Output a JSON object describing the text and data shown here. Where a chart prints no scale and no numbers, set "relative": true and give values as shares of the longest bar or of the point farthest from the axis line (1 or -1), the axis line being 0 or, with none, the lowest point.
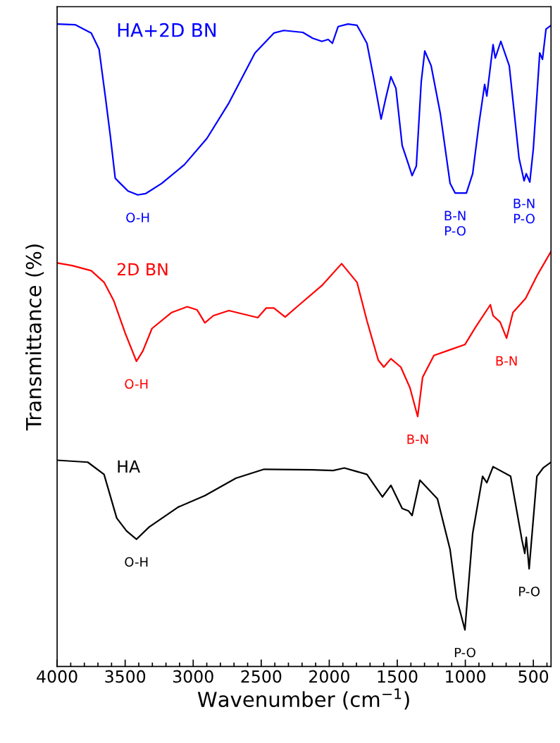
{
  "chart_data": {
    "type": "line",
    "relative": true,
    "xlabel": "Wavenumber (cm$^{−1}$)",
    "ylabel": "Transmittance (%)",
    "xlim": [
      4000,
      370
    ],
    "xticks": [
      4000,
      3500,
      3000,
      2500,
      2000,
      1500,
      1000,
      500,
      {
        "value": 3900,
        "label": null
      },
      {
        "value": 3800,
        "label": null
      },
      {
        "value": 3700,
        "label": null
      },
      {
        "value": 3600,
        "label": null
      },
      {
        "value": 3400,
        "label": null
      },
      {
        "value": 3300,
        "label": null
      },
      {
        "value": 3200,
        "label": null
      },
      {
        "value": 3100,
        "label": null
      },
      {
        "value": 2900,
        "label": null
      },
      {
        "value": 2800,
        "label": null
      },
      {
        "value": 2700,
        "label": null
      },
      {
        "value": 2600,
        "label": null
      },
      {
        "value": 2400,
        "label": null
      },
      {
        "value": 2300,
        "label": null
      },
      {
        "value": 2200,
        "label": null
      },
      {
        "value": 2100,
        "label": null
      },
      {
        "value": 1900,
        "label": null
      },
      {
        "value": 1800,
        "label": null
      },
      {
        "value": 1700,
        "label": null
      },
      {
        "value": 1600,
        "label": null
      },
      {
        "value": 1400,
        "label": null
      },
      {
        "value": 1300,
        "label": null
      },
      {
        "value": 1200,
        "label": null
      },
      {
        "value": 1100,
        "label": null
      },
      {
        "value": 900,
        "label": null
      },
      {
        "value": 800,
        "label": null
      },
      {
        "value": 700,
        "label": null
      },
      {
        "value": 600,
        "label": null
      },
      {
        "value": 400,
        "label": null
      }
    ],
    "grid": false,
    "legend": false,
    "series": [
      {
        "name": "HA+2D BN",
        "color": "#0000ff",
        "x": [
          4000,
          3868,
          3749,
          3692,
          3645,
          3609,
          3573,
          3536,
          3479,
          3407,
          3350,
          3231,
          3065,
          2899,
          2738,
          2546,
          2407,
          2334,
          2194,
          2122,
          2054,
          2008,
          1977,
          1935,
          1863,
          1796,
          1723,
          1677,
          1619,
          1583,
          1547,
          1510,
          1464,
          1417,
          1391,
          1360,
          1324,
          1298,
          1251,
          1184,
          1112,
          1075,
          992,
          946,
          899,
          858,
          842,
          796,
          780,
          739,
          677,
          605,
          568,
          552,
          526,
          500,
          453,
          433,
          407,
          370
        ],
        "values": [
          1.0,
          0.999,
          0.986,
          0.961,
          0.886,
          0.826,
          0.76,
          0.752,
          0.74,
          0.734,
          0.736,
          0.752,
          0.781,
          0.822,
          0.877,
          0.955,
          0.986,
          0.99,
          0.987,
          0.978,
          0.973,
          0.976,
          0.97,
          0.996,
          1.0,
          0.998,
          0.97,
          0.92,
          0.852,
          0.886,
          0.918,
          0.9,
          0.811,
          0.781,
          0.764,
          0.779,
          0.91,
          0.958,
          0.935,
          0.861,
          0.752,
          0.737,
          0.737,
          0.767,
          0.846,
          0.906,
          0.888,
          0.968,
          0.947,
          0.973,
          0.935,
          0.791,
          0.756,
          0.767,
          0.754,
          0.806,
          0.955,
          0.945,
          0.992,
          0.998
        ]
      },
      {
        "name": "2D BN",
        "color": "#ff0000",
        "x": [
          4000,
          3889,
          3749,
          3655,
          3583,
          3500,
          3417,
          3370,
          3303,
          3158,
          3044,
          2971,
          2914,
          2852,
          2738,
          2525,
          2463,
          2407,
          2324,
          2220,
          2054,
          1909,
          1796,
          1723,
          1640,
          1599,
          1547,
          1474,
          1407,
          1350,
          1314,
          1231,
          1112,
          1003,
          925,
          816,
          796,
          744,
          697,
          650,
          557,
          474,
          370
        ],
        "values": [
          0.628,
          0.624,
          0.616,
          0.598,
          0.569,
          0.519,
          0.475,
          0.491,
          0.526,
          0.551,
          0.56,
          0.555,
          0.535,
          0.546,
          0.554,
          0.543,
          0.558,
          0.558,
          0.544,
          0.563,
          0.593,
          0.627,
          0.598,
          0.538,
          0.477,
          0.466,
          0.479,
          0.466,
          0.434,
          0.389,
          0.45,
          0.484,
          0.493,
          0.501,
          0.528,
          0.563,
          0.546,
          0.536,
          0.511,
          0.551,
          0.573,
          0.608,
          0.646
        ]
      },
      {
        "name": "HA",
        "color": "#000000",
        "x": [
          4000,
          3775,
          3655,
          3562,
          3490,
          3417,
          3324,
          3111,
          2914,
          2686,
          2479,
          2122,
          1972,
          1889,
          1723,
          1609,
          1547,
          1464,
          1417,
          1391,
          1334,
          1205,
          1112,
          1065,
          1003,
          946,
          873,
          842,
          796,
          667,
          584,
          563,
          552,
          531,
          474,
          428,
          370
        ],
        "values": [
          0.321,
          0.318,
          0.299,
          0.231,
          0.211,
          0.198,
          0.217,
          0.248,
          0.266,
          0.293,
          0.307,
          0.306,
          0.305,
          0.309,
          0.299,
          0.264,
          0.282,
          0.246,
          0.242,
          0.235,
          0.29,
          0.261,
          0.182,
          0.107,
          0.057,
          0.207,
          0.296,
          0.286,
          0.311,
          0.296,
          0.197,
          0.176,
          0.201,
          0.152,
          0.296,
          0.309,
          0.318
        ]
      }
    ],
    "annotations": [
      {
        "text": "O-H",
        "x": 3407,
        "y": 0.734
      },
      {
        "text": "B-N\nP-O",
        "x": 1075,
        "y": 0.737
      },
      {
        "text": "B-N\nP-O",
        "x": 568,
        "y": 0.756
      },
      {
        "text": "O-H",
        "x": 3417,
        "y": 0.475
      },
      {
        "text": "B-N",
        "x": 1350,
        "y": 0.389
      },
      {
        "text": "B-N",
        "x": 697,
        "y": 0.511
      },
      {
        "text": "O-H",
        "x": 3417,
        "y": 0.198
      },
      {
        "text": "P-O",
        "x": 1003,
        "y": 0.057
      },
      {
        "text": "P-O",
        "x": 531,
        "y": 0.152
      }
    ]
  }
}
